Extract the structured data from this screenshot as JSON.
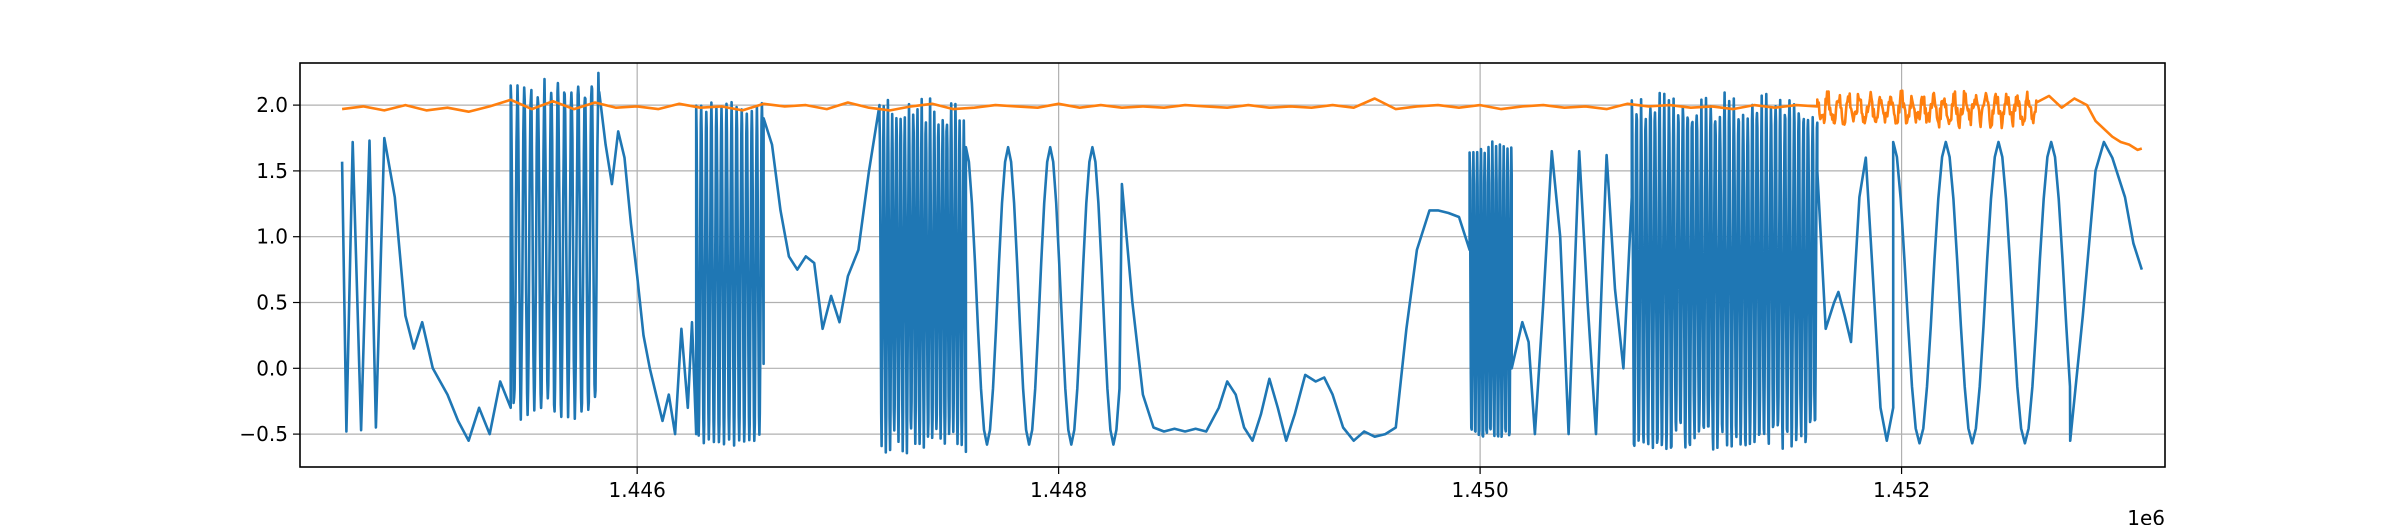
{
  "chart_data": {
    "type": "line",
    "grid": true,
    "xlim": [
      1444400,
      1453250
    ],
    "ylim": [
      -0.75,
      2.32
    ],
    "x_ticks": [
      1446000,
      1448000,
      1450000,
      1452000
    ],
    "x_tick_labels": [
      "1.446",
      "1.448",
      "1.450",
      "1.452"
    ],
    "x_offset_label": "1e6",
    "y_ticks": [
      -0.5,
      0.0,
      0.5,
      1.0,
      1.5,
      2.0
    ],
    "y_tick_labels": [
      "−0.5",
      "0.0",
      "0.5",
      "1.0",
      "1.5",
      "2.0"
    ],
    "series": [
      {
        "color": "#1f77b4",
        "segments": [
          {
            "kind": "points",
            "points": [
              [
                1444600,
                1.57
              ],
              [
                1444620,
                -0.48
              ],
              [
                1444650,
                1.72
              ],
              [
                1444690,
                -0.47
              ],
              [
                1444730,
                1.73
              ],
              [
                1444760,
                -0.45
              ],
              [
                1444800,
                1.75
              ],
              [
                1444850,
                1.3
              ],
              [
                1444900,
                0.4
              ],
              [
                1444940,
                0.15
              ],
              [
                1444980,
                0.35
              ],
              [
                1445030,
                0.0
              ],
              [
                1445100,
                -0.2
              ],
              [
                1445150,
                -0.4
              ],
              [
                1445200,
                -0.55
              ],
              [
                1445250,
                -0.3
              ],
              [
                1445300,
                -0.5
              ],
              [
                1445350,
                -0.1
              ],
              [
                1445400,
                -0.3
              ]
            ]
          },
          {
            "kind": "osc",
            "x0": 1445400,
            "x1": 1445820,
            "hi": 2.15,
            "lo": -0.3,
            "period": 32,
            "noise": 0.1
          },
          {
            "kind": "points",
            "points": [
              [
                1445820,
                2.1
              ],
              [
                1445850,
                1.7
              ],
              [
                1445880,
                1.4
              ],
              [
                1445910,
                1.8
              ],
              [
                1445940,
                1.6
              ],
              [
                1445970,
                1.1
              ],
              [
                1446000,
                0.7
              ],
              [
                1446030,
                0.25
              ],
              [
                1446060,
                0.0
              ],
              [
                1446090,
                -0.2
              ],
              [
                1446120,
                -0.4
              ],
              [
                1446150,
                -0.2
              ],
              [
                1446180,
                -0.5
              ],
              [
                1446210,
                0.3
              ],
              [
                1446240,
                -0.3
              ],
              [
                1446260,
                0.35
              ],
              [
                1446280,
                -0.5
              ]
            ]
          },
          {
            "kind": "osc",
            "x0": 1446280,
            "x1": 1446600,
            "hi": 1.98,
            "lo": -0.55,
            "period": 24,
            "noise": 0.05
          },
          {
            "kind": "points",
            "points": [
              [
                1446600,
                1.9
              ],
              [
                1446640,
                1.7
              ],
              [
                1446680,
                1.2
              ],
              [
                1446720,
                0.85
              ],
              [
                1446760,
                0.75
              ],
              [
                1446800,
                0.85
              ],
              [
                1446840,
                0.8
              ],
              [
                1446880,
                0.3
              ],
              [
                1446920,
                0.55
              ],
              [
                1446960,
                0.35
              ],
              [
                1447000,
                0.7
              ],
              [
                1447050,
                0.9
              ],
              [
                1447100,
                1.5
              ],
              [
                1447150,
                2.0
              ]
            ]
          },
          {
            "kind": "osc",
            "x0": 1447150,
            "x1": 1447560,
            "hi": 1.95,
            "lo": -0.55,
            "period": 20,
            "noise": 0.1
          },
          {
            "kind": "osc",
            "x0": 1447560,
            "x1": 1448300,
            "hi": 1.68,
            "lo": -0.58,
            "period": 200,
            "noise": 0.0
          },
          {
            "kind": "points",
            "points": [
              [
                1448300,
                1.4
              ],
              [
                1448350,
                0.5
              ],
              [
                1448400,
                -0.2
              ],
              [
                1448450,
                -0.45
              ],
              [
                1448500,
                -0.48
              ],
              [
                1448550,
                -0.46
              ],
              [
                1448600,
                -0.48
              ],
              [
                1448650,
                -0.46
              ],
              [
                1448700,
                -0.48
              ],
              [
                1448760,
                -0.3
              ],
              [
                1448800,
                -0.1
              ],
              [
                1448840,
                -0.2
              ],
              [
                1448880,
                -0.45
              ],
              [
                1448920,
                -0.55
              ],
              [
                1448960,
                -0.35
              ],
              [
                1449000,
                -0.08
              ],
              [
                1449040,
                -0.3
              ],
              [
                1449080,
                -0.55
              ],
              [
                1449120,
                -0.35
              ],
              [
                1449170,
                -0.05
              ],
              [
                1449220,
                -0.1
              ],
              [
                1449260,
                -0.07
              ],
              [
                1449300,
                -0.2
              ],
              [
                1449350,
                -0.45
              ],
              [
                1449400,
                -0.55
              ],
              [
                1449450,
                -0.48
              ],
              [
                1449500,
                -0.52
              ],
              [
                1449550,
                -0.5
              ],
              [
                1449600,
                -0.45
              ],
              [
                1449650,
                0.3
              ],
              [
                1449700,
                0.9
              ],
              [
                1449760,
                1.2
              ],
              [
                1449800,
                1.2
              ],
              [
                1449850,
                1.18
              ],
              [
                1449900,
                1.15
              ],
              [
                1449950,
                0.9
              ]
            ]
          },
          {
            "kind": "osc",
            "x0": 1449950,
            "x1": 1450150,
            "hi": 1.68,
            "lo": -0.55,
            "period": 18,
            "noise": 0.05
          },
          {
            "kind": "points",
            "points": [
              [
                1450150,
                0.0
              ],
              [
                1450200,
                0.35
              ],
              [
                1450230,
                0.2
              ],
              [
                1450260,
                -0.5
              ],
              [
                1450300,
                0.5
              ],
              [
                1450340,
                1.65
              ],
              [
                1450380,
                1.0
              ],
              [
                1450420,
                -0.5
              ],
              [
                1450470,
                1.65
              ],
              [
                1450510,
                0.5
              ],
              [
                1450550,
                -0.5
              ],
              [
                1450600,
                1.62
              ],
              [
                1450640,
                0.6
              ],
              [
                1450680,
                0.0
              ],
              [
                1450720,
                1.3
              ]
            ]
          },
          {
            "kind": "osc",
            "x0": 1450720,
            "x1": 1451600,
            "hi": 1.98,
            "lo": -0.55,
            "period": 22,
            "noise": 0.12
          },
          {
            "kind": "points",
            "points": [
              [
                1451600,
                1.5
              ],
              [
                1451640,
                0.3
              ],
              [
                1451680,
                0.5
              ],
              [
                1451700,
                0.58
              ],
              [
                1451730,
                0.4
              ],
              [
                1451760,
                0.2
              ],
              [
                1451800,
                1.3
              ],
              [
                1451830,
                1.6
              ],
              [
                1451860,
                0.8
              ],
              [
                1451900,
                -0.3
              ],
              [
                1451930,
                -0.55
              ],
              [
                1451960,
                -0.3
              ]
            ]
          },
          {
            "kind": "osc",
            "x0": 1451960,
            "x1": 1452800,
            "hi": 1.72,
            "lo": -0.57,
            "period": 250,
            "noise": 0.0
          },
          {
            "kind": "points",
            "points": [
              [
                1452800,
                -0.55
              ],
              [
                1452860,
                0.4
              ],
              [
                1452920,
                1.5
              ],
              [
                1452960,
                1.72
              ],
              [
                1453000,
                1.6
              ],
              [
                1453060,
                1.3
              ],
              [
                1453100,
                0.95
              ],
              [
                1453140,
                0.75
              ]
            ]
          }
        ]
      },
      {
        "color": "#ff7f0e",
        "segments": [
          {
            "kind": "points",
            "points": [
              [
                1444600,
                1.97
              ],
              [
                1444700,
                1.99
              ],
              [
                1444800,
                1.96
              ],
              [
                1444900,
                2.0
              ],
              [
                1445000,
                1.96
              ],
              [
                1445100,
                1.98
              ],
              [
                1445200,
                1.95
              ],
              [
                1445300,
                1.99
              ],
              [
                1445400,
                2.04
              ],
              [
                1445500,
                1.97
              ],
              [
                1445600,
                2.03
              ],
              [
                1445700,
                1.97
              ],
              [
                1445800,
                2.02
              ],
              [
                1445900,
                1.98
              ],
              [
                1446000,
                1.99
              ],
              [
                1446100,
                1.97
              ],
              [
                1446200,
                2.01
              ],
              [
                1446300,
                1.98
              ],
              [
                1446400,
                1.99
              ],
              [
                1446500,
                1.96
              ],
              [
                1446600,
                2.01
              ],
              [
                1446700,
                1.99
              ],
              [
                1446800,
                2.0
              ],
              [
                1446900,
                1.97
              ],
              [
                1447000,
                2.02
              ],
              [
                1447100,
                1.98
              ],
              [
                1447200,
                1.96
              ],
              [
                1447300,
                1.99
              ],
              [
                1447400,
                2.01
              ],
              [
                1447500,
                1.97
              ],
              [
                1447600,
                1.98
              ],
              [
                1447700,
                2.0
              ],
              [
                1447800,
                1.99
              ],
              [
                1447900,
                1.98
              ],
              [
                1448000,
                2.01
              ],
              [
                1448100,
                1.98
              ],
              [
                1448200,
                2.0
              ],
              [
                1448300,
                1.98
              ],
              [
                1448400,
                1.99
              ],
              [
                1448500,
                1.98
              ],
              [
                1448600,
                2.0
              ],
              [
                1448700,
                1.99
              ],
              [
                1448800,
                1.98
              ],
              [
                1448900,
                2.0
              ],
              [
                1449000,
                1.98
              ],
              [
                1449100,
                1.99
              ],
              [
                1449200,
                1.98
              ],
              [
                1449300,
                2.0
              ],
              [
                1449400,
                1.98
              ],
              [
                1449500,
                2.05
              ],
              [
                1449600,
                1.97
              ],
              [
                1449700,
                1.99
              ],
              [
                1449800,
                2.0
              ],
              [
                1449900,
                1.98
              ],
              [
                1450000,
                2.0
              ],
              [
                1450100,
                1.97
              ],
              [
                1450200,
                1.99
              ],
              [
                1450300,
                2.0
              ],
              [
                1450400,
                1.98
              ],
              [
                1450500,
                1.99
              ],
              [
                1450600,
                1.97
              ],
              [
                1450700,
                2.01
              ],
              [
                1450800,
                1.99
              ],
              [
                1450900,
                2.0
              ],
              [
                1451000,
                1.98
              ],
              [
                1451100,
                1.99
              ],
              [
                1451200,
                1.97
              ],
              [
                1451300,
                2.0
              ],
              [
                1451400,
                1.98
              ],
              [
                1451500,
                2.0
              ],
              [
                1451600,
                1.99
              ]
            ]
          },
          {
            "kind": "osc",
            "x0": 1451600,
            "x1": 1452640,
            "hi": 2.06,
            "lo": 1.88,
            "period": 50,
            "noise": 0.06
          },
          {
            "kind": "points",
            "points": [
              [
                1452640,
                2.02
              ],
              [
                1452700,
                2.07
              ],
              [
                1452760,
                1.98
              ],
              [
                1452820,
                2.05
              ],
              [
                1452880,
                2.0
              ],
              [
                1452920,
                1.88
              ],
              [
                1452960,
                1.82
              ],
              [
                1453000,
                1.76
              ],
              [
                1453040,
                1.72
              ],
              [
                1453080,
                1.7
              ],
              [
                1453120,
                1.66
              ],
              [
                1453140,
                1.67
              ]
            ]
          }
        ]
      }
    ]
  }
}
